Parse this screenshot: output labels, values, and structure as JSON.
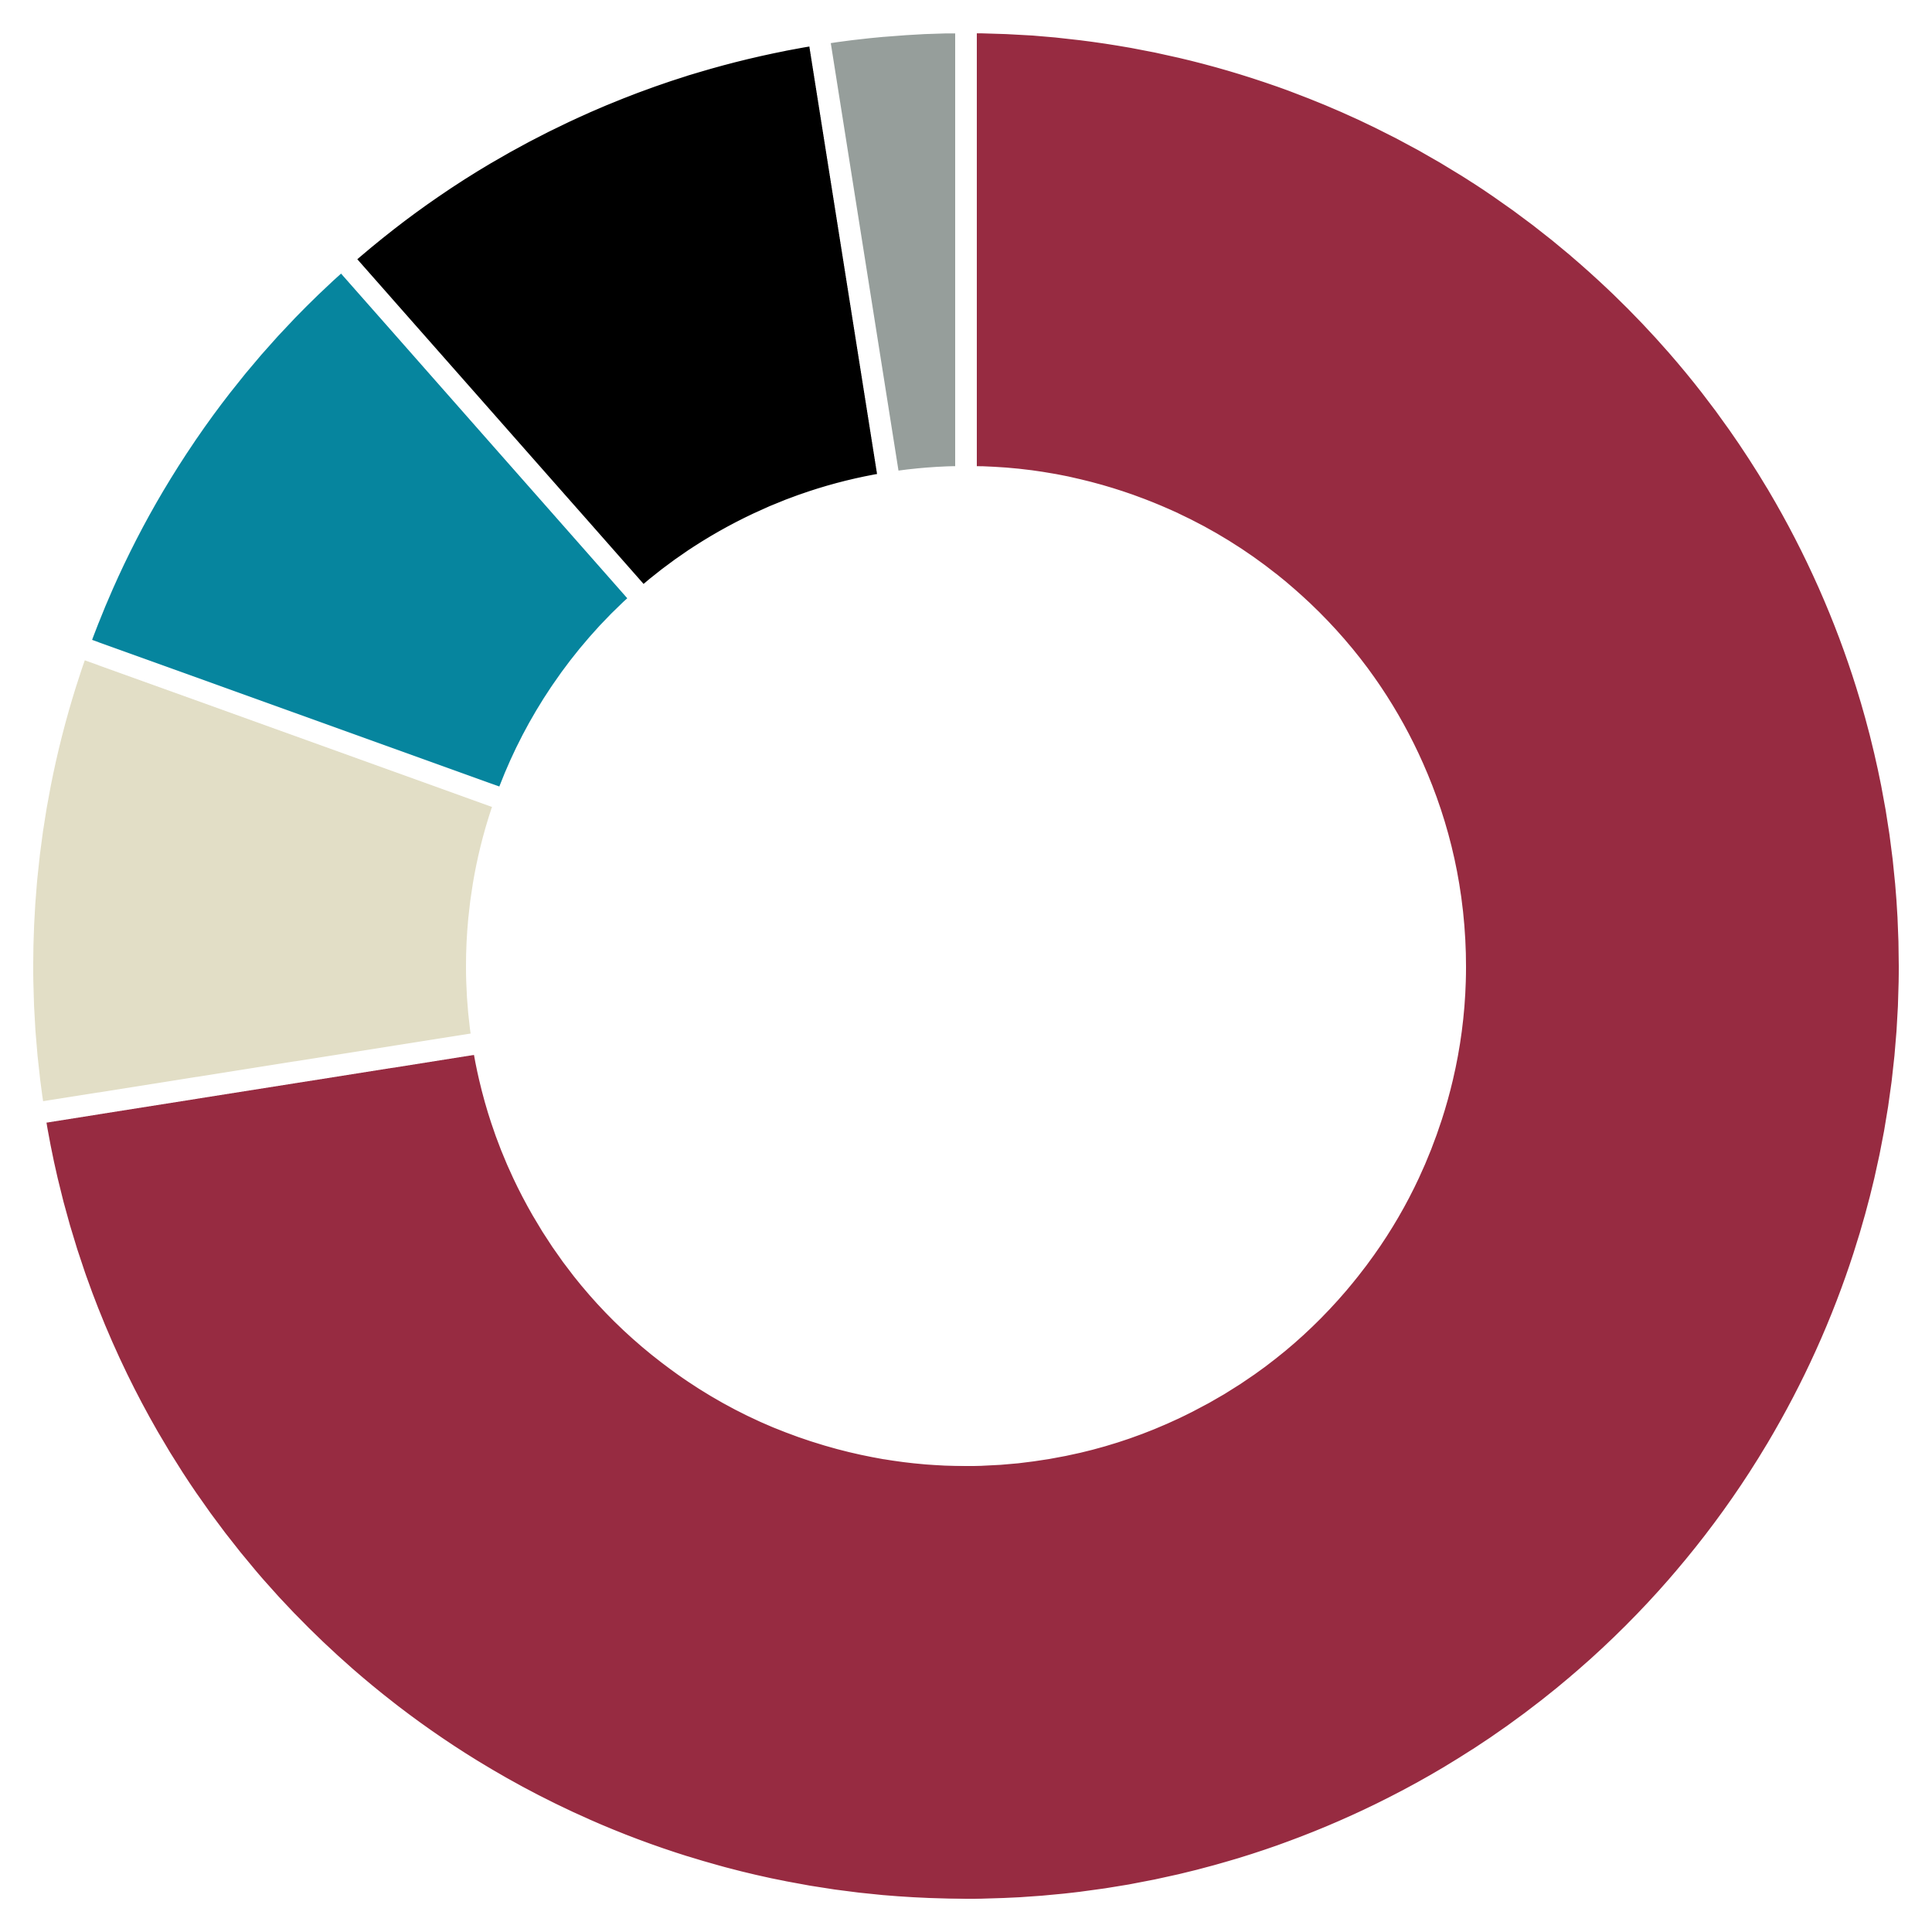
{
  "chart_data": {
    "type": "pie",
    "variant": "donut",
    "start_angle": "top",
    "direction": "clockwise",
    "legend": "none",
    "data_labels": "none",
    "slices": [
      {
        "value": 72.5,
        "color": "#972B41"
      },
      {
        "value": 8.0,
        "color": "#E2DEC6"
      },
      {
        "value": 8.0,
        "color": "#06859E"
      },
      {
        "value": 9.0,
        "color": "#000000"
      },
      {
        "value": 2.5,
        "color": "#969E9B"
      }
    ],
    "separator_color": "#FFFFFF"
  }
}
